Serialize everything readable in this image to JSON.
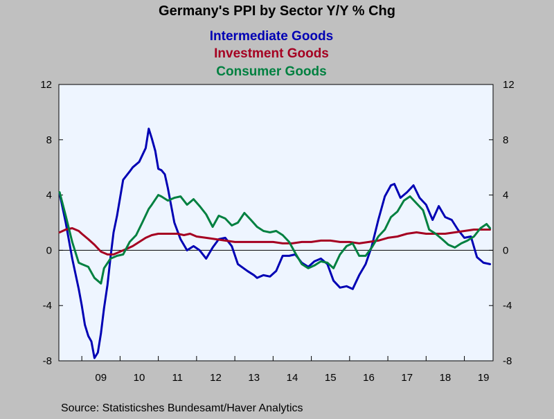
{
  "chart_data": {
    "type": "line",
    "title": "Germany's PPI by Sector Y/Y % Chg",
    "source": "Source:  Statisticshes Bundesamt/Haver Analytics",
    "ylim": [
      -8,
      12
    ],
    "yticks": [
      -8,
      -4,
      0,
      4,
      8,
      12
    ],
    "xlim": [
      2008.4,
      2019.75
    ],
    "xticks": [
      "09",
      "10",
      "11",
      "12",
      "13",
      "14",
      "15",
      "16",
      "17",
      "18",
      "19"
    ],
    "grid": false,
    "legend_position": "top-center",
    "background_color": "#eef5ff",
    "series": [
      {
        "name": "Intermediate Goods",
        "color": "#0000b4",
        "x": [
          2008.42,
          2008.58,
          2008.75,
          2008.92,
          2009.0,
          2009.08,
          2009.17,
          2009.25,
          2009.33,
          2009.42,
          2009.5,
          2009.58,
          2009.67,
          2009.75,
          2009.83,
          2009.92,
          2010.08,
          2010.25,
          2010.33,
          2010.5,
          2010.67,
          2010.75,
          2010.83,
          2010.92,
          2011.0,
          2011.08,
          2011.17,
          2011.25,
          2011.42,
          2011.58,
          2011.75,
          2011.92,
          2012.08,
          2012.25,
          2012.42,
          2012.58,
          2012.75,
          2012.92,
          2013.08,
          2013.33,
          2013.5,
          2013.58,
          2013.75,
          2013.92,
          2014.08,
          2014.25,
          2014.42,
          2014.58,
          2014.75,
          2014.92,
          2015.08,
          2015.25,
          2015.42,
          2015.58,
          2015.75,
          2015.92,
          2016.08,
          2016.25,
          2016.42,
          2016.58,
          2016.75,
          2016.92,
          2017.08,
          2017.17,
          2017.33,
          2017.5,
          2017.67,
          2017.83,
          2018.0,
          2018.17,
          2018.33,
          2018.5,
          2018.67,
          2018.83,
          2019.0,
          2019.17,
          2019.33,
          2019.5,
          2019.67
        ],
        "values": [
          4.1,
          2.0,
          -0.6,
          -2.8,
          -4.0,
          -5.4,
          -6.2,
          -6.6,
          -7.8,
          -7.4,
          -6.0,
          -4.2,
          -2.5,
          -0.5,
          1.3,
          2.5,
          5.1,
          5.7,
          6.0,
          6.4,
          7.4,
          8.8,
          8.1,
          7.2,
          5.9,
          5.8,
          5.5,
          4.5,
          2.0,
          0.8,
          0.0,
          0.3,
          0.0,
          -0.6,
          0.2,
          0.8,
          0.9,
          0.3,
          -1.0,
          -1.5,
          -1.8,
          -2.0,
          -1.8,
          -1.9,
          -1.5,
          -0.4,
          -0.4,
          -0.3,
          -0.9,
          -1.2,
          -0.8,
          -0.6,
          -1.0,
          -2.2,
          -2.7,
          -2.6,
          -2.8,
          -1.8,
          -1.0,
          0.3,
          2.2,
          3.9,
          4.7,
          4.8,
          3.8,
          4.2,
          4.7,
          3.8,
          3.3,
          2.2,
          3.2,
          2.4,
          2.2,
          1.5,
          0.9,
          1.0,
          -0.5,
          -0.9,
          -1.0
        ]
      },
      {
        "name": "Investment Goods",
        "color": "#a50021",
        "x": [
          2008.42,
          2008.58,
          2008.75,
          2008.92,
          2009.0,
          2009.17,
          2009.33,
          2009.5,
          2009.67,
          2009.83,
          2010.0,
          2010.17,
          2010.33,
          2010.5,
          2010.67,
          2010.83,
          2011.0,
          2011.25,
          2011.5,
          2011.67,
          2011.83,
          2012.0,
          2012.25,
          2012.5,
          2012.75,
          2013.0,
          2013.25,
          2013.5,
          2013.75,
          2014.0,
          2014.25,
          2014.5,
          2014.75,
          2015.0,
          2015.25,
          2015.5,
          2015.75,
          2016.0,
          2016.25,
          2016.5,
          2016.75,
          2017.0,
          2017.25,
          2017.5,
          2017.75,
          2018.0,
          2018.25,
          2018.5,
          2018.75,
          2019.0,
          2019.25,
          2019.5,
          2019.67
        ],
        "values": [
          1.3,
          1.5,
          1.6,
          1.4,
          1.2,
          0.8,
          0.4,
          -0.1,
          -0.3,
          -0.3,
          -0.1,
          0.1,
          0.3,
          0.6,
          0.9,
          1.1,
          1.2,
          1.2,
          1.2,
          1.1,
          1.2,
          1.0,
          0.9,
          0.8,
          0.7,
          0.6,
          0.6,
          0.6,
          0.6,
          0.6,
          0.5,
          0.5,
          0.6,
          0.6,
          0.7,
          0.7,
          0.6,
          0.6,
          0.5,
          0.6,
          0.7,
          0.9,
          1.0,
          1.2,
          1.3,
          1.2,
          1.2,
          1.2,
          1.3,
          1.4,
          1.5,
          1.5,
          1.5
        ]
      },
      {
        "name": "Consumer Goods",
        "color": "#008040",
        "x": [
          2008.42,
          2008.58,
          2008.75,
          2008.92,
          2009.0,
          2009.17,
          2009.33,
          2009.5,
          2009.58,
          2009.75,
          2009.92,
          2010.08,
          2010.25,
          2010.42,
          2010.58,
          2010.75,
          2010.83,
          2011.0,
          2011.08,
          2011.25,
          2011.42,
          2011.58,
          2011.75,
          2011.92,
          2012.08,
          2012.25,
          2012.42,
          2012.58,
          2012.75,
          2012.92,
          2013.08,
          2013.25,
          2013.42,
          2013.58,
          2013.75,
          2013.92,
          2014.08,
          2014.25,
          2014.42,
          2014.58,
          2014.75,
          2014.92,
          2015.08,
          2015.25,
          2015.42,
          2015.58,
          2015.75,
          2015.92,
          2016.08,
          2016.25,
          2016.42,
          2016.58,
          2016.75,
          2016.92,
          2017.08,
          2017.25,
          2017.42,
          2017.58,
          2017.75,
          2017.92,
          2018.08,
          2018.25,
          2018.42,
          2018.58,
          2018.75,
          2018.92,
          2019.08,
          2019.25,
          2019.42,
          2019.58,
          2019.67
        ],
        "values": [
          4.2,
          2.5,
          0.6,
          -0.9,
          -1.0,
          -1.2,
          -2.0,
          -2.4,
          -1.3,
          -0.6,
          -0.4,
          -0.3,
          0.6,
          1.1,
          2.0,
          3.0,
          3.3,
          4.0,
          3.9,
          3.6,
          3.8,
          3.9,
          3.3,
          3.7,
          3.2,
          2.6,
          1.7,
          2.5,
          2.3,
          1.8,
          2.0,
          2.7,
          2.2,
          1.7,
          1.4,
          1.3,
          1.4,
          1.1,
          0.6,
          -0.2,
          -1.0,
          -1.3,
          -1.1,
          -0.8,
          -0.9,
          -1.3,
          -0.3,
          0.3,
          0.5,
          -0.4,
          -0.4,
          0.2,
          1.0,
          1.5,
          2.4,
          2.8,
          3.6,
          3.9,
          3.4,
          2.9,
          1.5,
          1.2,
          0.8,
          0.4,
          0.2,
          0.5,
          0.7,
          1.0,
          1.6,
          1.9,
          1.6
        ]
      }
    ]
  }
}
